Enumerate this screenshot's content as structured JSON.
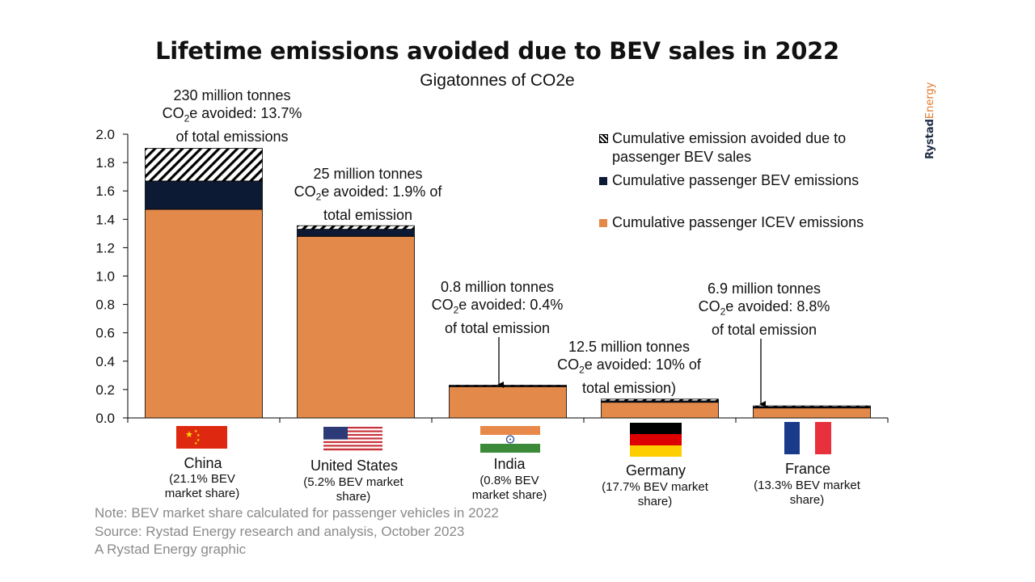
{
  "title": "Lifetime emissions avoided due to BEV sales in 2022",
  "subtitle": "Gigatonnes of CO2e",
  "brand": {
    "part1": "Rystad",
    "part2": "Energy"
  },
  "colors": {
    "icev": "#e3894a",
    "bev": "#0c1a33",
    "avoided_hatch": "#000000"
  },
  "legend": {
    "avoided": "Cumulative emission avoided due to passenger BEV sales",
    "avoided_line1": "Cumulative emission avoided due to",
    "avoided_line2": "passenger BEV sales",
    "bev": "Cumulative passenger BEV emissions",
    "icev": "Cumulative passenger ICEV emissions"
  },
  "annotations": {
    "china": {
      "l1": "230 million tonnes",
      "l2a": "CO",
      "l2sub": "2",
      "l2b": "e avoided: 13.7%",
      "l3": "of total emissions"
    },
    "us": {
      "l1": "25 million tonnes",
      "l2a": "CO",
      "l2sub": "2",
      "l2b": "e avoided: 1.9% of",
      "l3": "total emission"
    },
    "india": {
      "l1": "0.8 million tonnes",
      "l2a": "CO",
      "l2sub": "2",
      "l2b": "e avoided: 0.4%",
      "l3": "of total emission"
    },
    "germany": {
      "l1": "12.5 million tonnes",
      "l2a": "CO",
      "l2sub": "2",
      "l2b": "e avoided: 10% of",
      "l3": "total emission)"
    },
    "france": {
      "l1": "6.9 million tonnes",
      "l2a": "CO",
      "l2sub": "2",
      "l2b": "e avoided: 8.8%",
      "l3": "of total emission"
    }
  },
  "countries": {
    "china": {
      "name": "China",
      "share1": "(21.1% BEV",
      "share2": "market share)"
    },
    "us": {
      "name": "United States",
      "share1": "(5.2% BEV market",
      "share2": "share)"
    },
    "india": {
      "name": "India",
      "share1": "(0.8% BEV",
      "share2": "market share)"
    },
    "germany": {
      "name": "Germany",
      "share1": "(17.7% BEV market",
      "share2": "share)"
    },
    "france": {
      "name": "France",
      "share1": "(13.3% BEV market",
      "share2": "share)"
    }
  },
  "footer": {
    "note": "Note: BEV market share calculated for passenger vehicles in 2022",
    "source": "Source: Rystad Energy research and analysis, October 2023",
    "credit": "A Rystad Energy graphic"
  },
  "chart_data": {
    "type": "bar",
    "stacked": true,
    "title": "Lifetime emissions avoided due to BEV sales in 2022",
    "subtitle": "Gigatonnes of CO2e",
    "categories": [
      "China",
      "United States",
      "India",
      "Germany",
      "France"
    ],
    "series": [
      {
        "name": "Cumulative passenger ICEV emissions",
        "values": [
          1.47,
          1.28,
          0.22,
          0.11,
          0.07
        ]
      },
      {
        "name": "Cumulative passenger BEV emissions",
        "values": [
          0.2,
          0.05,
          0.005,
          0.01,
          0.008
        ]
      },
      {
        "name": "Cumulative emission avoided due to passenger BEV sales",
        "values": [
          0.23,
          0.025,
          0.0008,
          0.0125,
          0.0069
        ]
      }
    ],
    "ylim": [
      0,
      2.0
    ],
    "yticks": [
      "0.0",
      "0.2",
      "0.4",
      "0.6",
      "0.8",
      "1.0",
      "1.2",
      "1.4",
      "1.6",
      "1.8",
      "2.0"
    ],
    "legend_position": "top-right",
    "grid": false
  }
}
